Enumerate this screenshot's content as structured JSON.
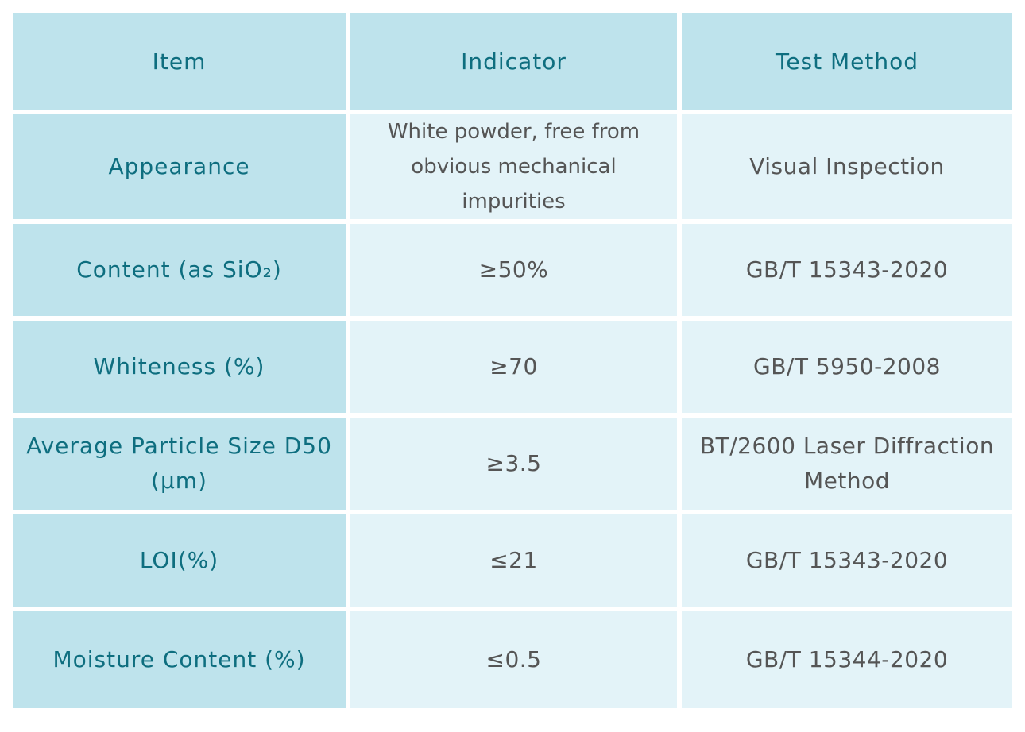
{
  "table": {
    "headers": [
      "Item",
      "Indicator",
      "Test Method"
    ],
    "rows": [
      {
        "item": "Appearance",
        "indicator": "White powder, free from obvious mechanical impurities",
        "method": "Visual Inspection"
      },
      {
        "item": "Content (as SiO₂)",
        "indicator": "≥50%",
        "method": "GB/T 15343-2020"
      },
      {
        "item": "Whiteness (%)",
        "indicator": "≥70",
        "method": "GB/T 5950-2008"
      },
      {
        "item": "Average Particle Size D50 (μm)",
        "indicator": "≥3.5",
        "method": "BT/2600 Laser Diffraction Method"
      },
      {
        "item": "LOI(%)",
        "indicator": "≤21",
        "method": "GB/T 15343-2020"
      },
      {
        "item": "Moisture Content (%)",
        "indicator": "≤0.5",
        "method": "GB/T 15344-2020"
      }
    ]
  }
}
